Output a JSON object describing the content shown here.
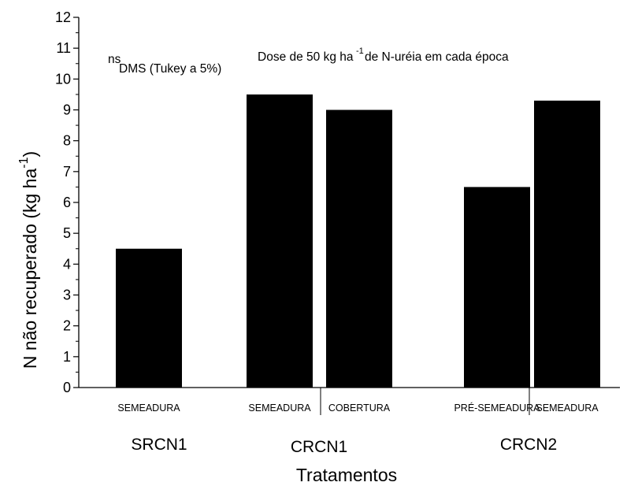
{
  "chart_data": {
    "type": "bar",
    "ylabel": "N não recuperado (kg ha",
    "ylabel_sup": "-1",
    "ylabel_close": ")",
    "xlabel": "Tratamentos",
    "ylim": [
      0,
      12
    ],
    "y_ticks": [
      "0",
      "1",
      "2",
      "3",
      "4",
      "5",
      "6",
      "7",
      "8",
      "9",
      "10",
      "11",
      "12"
    ],
    "annotations": {
      "ns": "ns",
      "dms": "DMS (Tukey a 5%)",
      "dose_text": "Dose de 50 kg ha",
      "dose_sup": "-1",
      "dose_tail": " de N-uréia em cada época"
    },
    "categories": [
      "SEMEADURA",
      "SEMEADURA",
      "COBERTURA",
      "PRÉ-SEMEADURA",
      "SEMEADURA"
    ],
    "groups": [
      "SRCN1",
      "CRCN1",
      "CRCN1",
      "CRCN2",
      "CRCN2"
    ],
    "group_labels": [
      "SRCN1",
      "CRCN1",
      "CRCN2"
    ],
    "values": [
      4.5,
      9.5,
      9.0,
      6.5,
      9.3
    ],
    "bar_color": "#000000"
  }
}
